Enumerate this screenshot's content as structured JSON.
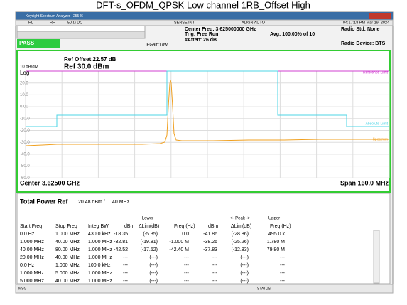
{
  "page_title": "DFT-s_OFDM_QPSK Low channel 1RB_Offset High",
  "window": {
    "title": "Keysight Spectrum Analyzer - 25546"
  },
  "toolbar": {
    "rl": "RL",
    "rf": "RF",
    "impedance": "50 Ω  DC",
    "sense": "SENSE:INT",
    "align": "ALIGN AUTO",
    "time": "04:17:18 PM Mar 19, 2024"
  },
  "header": {
    "status": "PASS",
    "center_freq": "Center Freq: 3.625000000 GHz",
    "trig": "Trig: Free Run",
    "atten": "#Atten: 26 dB",
    "avg": "Avg: 100.00% of 10",
    "ifgain": "IFGain:Low",
    "radio_std": "Radio Std: None",
    "radio_device": "Radio Device: BTS"
  },
  "plot": {
    "ref_offset": "Ref Offset 22.57 dB",
    "scale": "10 dB/div",
    "ref_level": "Ref 30.0 dBm",
    "log": "Log",
    "y_labels": [
      "20.0",
      "10.0",
      "0.00",
      "-10.0",
      "-20.0",
      "-30.0",
      "-40.0",
      "-50.0",
      "-60.0"
    ],
    "traces": {
      "reference": "Reference Limit",
      "absolute": "Absolute Limit",
      "spectrum": "Spectrum"
    },
    "center": "Center 3.62500 GHz",
    "span": "Span 160.0 MHz"
  },
  "summary": {
    "label": "Total Power Ref",
    "power": "20.48 dBm /",
    "bw": "40 MHz"
  },
  "table": {
    "group_headers": [
      "Lower",
      "<- Peak ->",
      "Upper"
    ],
    "headers": [
      "Start Freq",
      "Stop Freq",
      "Integ BW",
      "dBm",
      "ΔLim(dB)",
      "Freq (Hz)",
      "dBm",
      "ΔLim(dB)",
      "Freq (Hz)"
    ],
    "rows": [
      [
        "0.0 Hz",
        "1.000 MHz",
        "430.0 kHz",
        "-18.35",
        "(-5.35)",
        "0.0",
        "-41.86",
        "(-28.86)",
        "495.0 k"
      ],
      [
        "1.000 MHz",
        "40.00 MHz",
        "1.000 MHz",
        "-32.81",
        "(-19.81)",
        "-1.000 M",
        "-38.26",
        "(-25.26)",
        "1.780 M"
      ],
      [
        "40.00 MHz",
        "80.00 MHz",
        "1.000 MHz",
        "-42.52",
        "(-17.52)",
        "-42.40 M",
        "-37.83",
        "(-12.83)",
        "79.80 M"
      ],
      [
        "20.00 MHz",
        "40.00 MHz",
        "1.000 MHz",
        "---",
        "(---)",
        "---",
        "---",
        "(---)",
        "---"
      ],
      [
        "0.0 Hz",
        "1.000 MHz",
        "100.0 kHz",
        "---",
        "(---)",
        "---",
        "---",
        "(---)",
        "---"
      ],
      [
        "1.000 MHz",
        "5.000 MHz",
        "1.000 MHz",
        "---",
        "(---)",
        "---",
        "---",
        "(---)",
        "---"
      ],
      [
        "5.000 MHz",
        "40.00 MHz",
        "1.000 MHz",
        "---",
        "(---)",
        "---",
        "---",
        "(---)",
        "---"
      ]
    ]
  },
  "statusbar": {
    "msg": "MSG",
    "status": "STATUS"
  }
}
